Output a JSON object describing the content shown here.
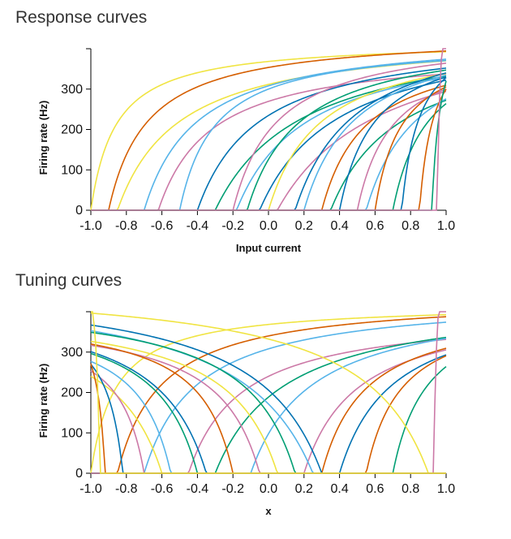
{
  "chart_data": [
    {
      "type": "line",
      "title": "Response curves",
      "xlabel": "Input current",
      "ylabel": "Firing rate (Hz)",
      "xlim": [
        -1.0,
        1.0
      ],
      "ylim": [
        0,
        400
      ],
      "xticks": [
        "-1.0",
        "-0.8",
        "-0.6",
        "-0.4",
        "-0.2",
        "0.0",
        "0.2",
        "0.4",
        "0.6",
        "0.8",
        "1.0"
      ],
      "yticks": [
        "0",
        "100",
        "200",
        "300"
      ],
      "grid": false,
      "series": [
        {
          "color": "#f0e442",
          "x0": -1.0,
          "k": 0.14,
          "rmax": 420
        },
        {
          "color": "#d55e00",
          "x0": -0.9,
          "k": 0.22,
          "rmax": 440
        },
        {
          "color": "#f0e442",
          "x0": -0.85,
          "k": 0.35,
          "rmax": 440
        },
        {
          "color": "#56b4e9",
          "x0": -0.7,
          "k": 0.3,
          "rmax": 440
        },
        {
          "color": "#cc79a7",
          "x0": -0.62,
          "k": 0.3,
          "rmax": 400
        },
        {
          "color": "#56b4e9",
          "x0": -0.5,
          "k": 0.2,
          "rmax": 420
        },
        {
          "color": "#0072b2",
          "x0": -0.4,
          "k": 0.35,
          "rmax": 440
        },
        {
          "color": "#009e73",
          "x0": -0.3,
          "k": 0.5,
          "rmax": 460
        },
        {
          "color": "#cc79a7",
          "x0": -0.2,
          "k": 0.25,
          "rmax": 440
        },
        {
          "color": "#56b4e9",
          "x0": -0.18,
          "k": 0.4,
          "rmax": 440
        },
        {
          "color": "#009e73",
          "x0": -0.12,
          "k": 0.3,
          "rmax": 440
        },
        {
          "color": "#0072b2",
          "x0": -0.05,
          "k": 0.45,
          "rmax": 460
        },
        {
          "color": "#f0e442",
          "x0": 0.0,
          "k": 0.3,
          "rmax": 440
        },
        {
          "color": "#cc79a7",
          "x0": 0.05,
          "k": 0.6,
          "rmax": 480
        },
        {
          "color": "#0072b2",
          "x0": 0.15,
          "k": 0.35,
          "rmax": 480
        },
        {
          "color": "#56b4e9",
          "x0": 0.2,
          "k": 0.3,
          "rmax": 460
        },
        {
          "color": "#d55e00",
          "x0": 0.3,
          "k": 0.25,
          "rmax": 420
        },
        {
          "color": "#009e73",
          "x0": 0.35,
          "k": 0.4,
          "rmax": 440
        },
        {
          "color": "#0072b2",
          "x0": 0.4,
          "k": 0.2,
          "rmax": 440
        },
        {
          "color": "#cc79a7",
          "x0": 0.5,
          "k": 0.2,
          "rmax": 420
        },
        {
          "color": "#56b4e9",
          "x0": 0.55,
          "k": 0.3,
          "rmax": 460
        },
        {
          "color": "#d55e00",
          "x0": 0.6,
          "k": 0.15,
          "rmax": 420
        },
        {
          "color": "#009e73",
          "x0": 0.7,
          "k": 0.2,
          "rmax": 440
        },
        {
          "color": "#0072b2",
          "x0": 0.75,
          "k": 0.1,
          "rmax": 460
        },
        {
          "color": "#d55e00",
          "x0": 0.85,
          "k": 0.08,
          "rmax": 460
        },
        {
          "color": "#009e73",
          "x0": 0.92,
          "k": 0.05,
          "rmax": 520
        },
        {
          "color": "#cc79a7",
          "x0": 0.95,
          "k": 0.02,
          "rmax": 700
        }
      ]
    },
    {
      "type": "line",
      "title": "Tuning curves",
      "xlabel": "x",
      "ylabel": "Firing rate (Hz)",
      "xlim": [
        -1.0,
        1.0
      ],
      "ylim": [
        0,
        400
      ],
      "xticks": [
        "-1.0",
        "-0.8",
        "-0.6",
        "-0.4",
        "-0.2",
        "0.0",
        "0.2",
        "0.4",
        "0.6",
        "0.8",
        "1.0"
      ],
      "yticks": [
        "0",
        "100",
        "200",
        "300"
      ],
      "grid": false,
      "series": [
        {
          "color": "#f0e442",
          "dir": 1,
          "x0": -1.0,
          "k": 0.14,
          "rmax": 420
        },
        {
          "color": "#d55e00",
          "dir": 1,
          "x0": -0.85,
          "k": 0.25,
          "rmax": 440
        },
        {
          "color": "#56b4e9",
          "dir": 1,
          "x0": -0.7,
          "k": 0.3,
          "rmax": 440
        },
        {
          "color": "#cc79a7",
          "dir": 1,
          "x0": -0.45,
          "k": 0.3,
          "rmax": 400
        },
        {
          "color": "#009e73",
          "dir": 1,
          "x0": -0.3,
          "k": 0.4,
          "rmax": 440
        },
        {
          "color": "#56b4e9",
          "dir": 1,
          "x0": -0.1,
          "k": 0.35,
          "rmax": 440
        },
        {
          "color": "#cc79a7",
          "dir": 1,
          "x0": 0.2,
          "k": 0.3,
          "rmax": 420
        },
        {
          "color": "#d55e00",
          "dir": 1,
          "x0": 0.3,
          "k": 0.25,
          "rmax": 420
        },
        {
          "color": "#0072b2",
          "dir": 1,
          "x0": 0.4,
          "k": 0.3,
          "rmax": 440
        },
        {
          "color": "#d55e00",
          "dir": 1,
          "x0": 0.55,
          "k": 0.2,
          "rmax": 420
        },
        {
          "color": "#009e73",
          "dir": 1,
          "x0": 0.7,
          "k": 0.2,
          "rmax": 440
        },
        {
          "color": "#cc79a7",
          "dir": 1,
          "x0": 0.93,
          "k": 0.02,
          "rmax": 700
        },
        {
          "color": "#f0e442",
          "dir": -1,
          "x0": 0.9,
          "k": 0.4,
          "rmax": 480
        },
        {
          "color": "#0072b2",
          "dir": -1,
          "x0": 0.3,
          "k": 0.4,
          "rmax": 480
        },
        {
          "color": "#56b4e9",
          "dir": -1,
          "x0": 0.25,
          "k": 0.45,
          "rmax": 480
        },
        {
          "color": "#009e73",
          "dir": -1,
          "x0": 0.15,
          "k": 0.3,
          "rmax": 440
        },
        {
          "color": "#f0e442",
          "dir": -1,
          "x0": 0.05,
          "k": 0.3,
          "rmax": 420
        },
        {
          "color": "#cc79a7",
          "dir": -1,
          "x0": -0.05,
          "k": 0.25,
          "rmax": 400
        },
        {
          "color": "#d55e00",
          "dir": -1,
          "x0": -0.2,
          "k": 0.2,
          "rmax": 400
        },
        {
          "color": "#0072b2",
          "dir": -1,
          "x0": -0.35,
          "k": 0.3,
          "rmax": 440
        },
        {
          "color": "#009e73",
          "dir": -1,
          "x0": -0.4,
          "k": 0.25,
          "rmax": 420
        },
        {
          "color": "#56b4e9",
          "dir": -1,
          "x0": -0.55,
          "k": 0.2,
          "rmax": 400
        },
        {
          "color": "#f0e442",
          "dir": -1,
          "x0": -0.6,
          "k": 0.3,
          "rmax": 420
        },
        {
          "color": "#cc79a7",
          "dir": -1,
          "x0": -0.7,
          "k": 0.15,
          "rmax": 380
        },
        {
          "color": "#0072b2",
          "dir": -1,
          "x0": -0.82,
          "k": 0.1,
          "rmax": 420
        },
        {
          "color": "#d55e00",
          "dir": -1,
          "x0": -0.92,
          "k": 0.05,
          "rmax": 440
        },
        {
          "color": "#f0e442",
          "dir": -1,
          "x0": -0.95,
          "k": 0.02,
          "rmax": 600
        }
      ]
    }
  ]
}
